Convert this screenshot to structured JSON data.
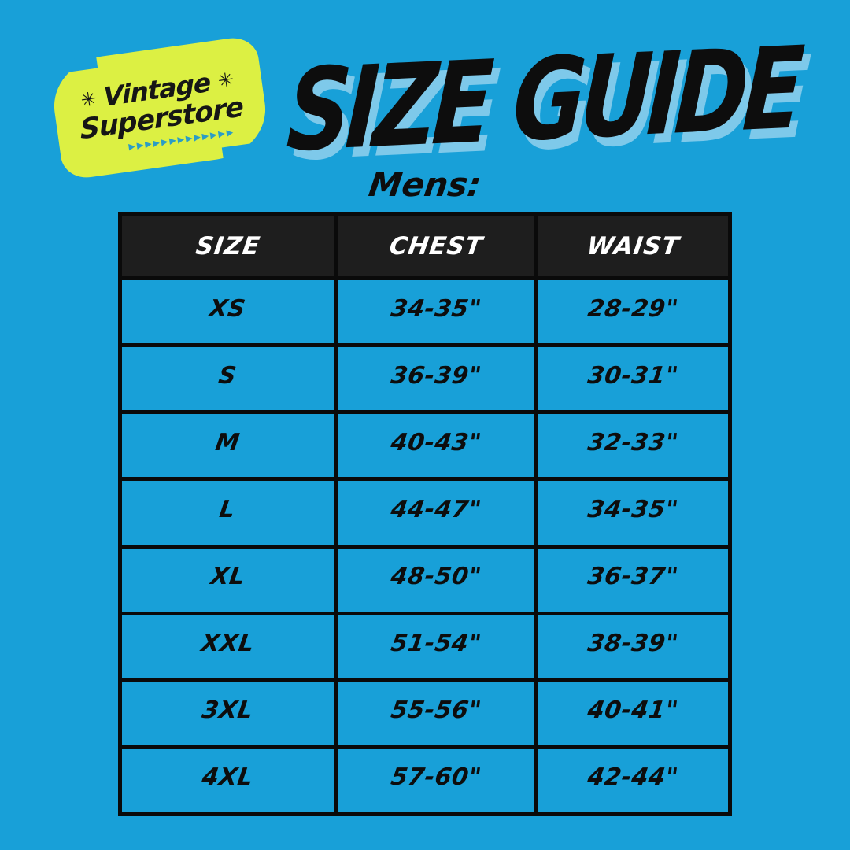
{
  "colors": {
    "background": "#18a0d8",
    "title_shadow": "#7ec9ea",
    "badge": "#dcf043",
    "header_bg": "#1e1e1e",
    "border": "#0a0a0a",
    "arrow": "#2b9dc5"
  },
  "logo": {
    "line1": "Vintage",
    "line2": "Superstore",
    "sparkle": "✳",
    "arrows": "▶▶▶▶▶▶▶▶▶▶▶▶▶"
  },
  "title": "SIZE GUIDE",
  "section_label": "Mens:",
  "table": {
    "headers": [
      "SIZE",
      "CHEST",
      "WAIST"
    ],
    "rows": [
      {
        "size": "XS",
        "chest": "34-35\"",
        "waist": "28-29\""
      },
      {
        "size": "S",
        "chest": "36-39\"",
        "waist": "30-31\""
      },
      {
        "size": "M",
        "chest": "40-43\"",
        "waist": "32-33\""
      },
      {
        "size": "L",
        "chest": "44-47\"",
        "waist": "34-35\""
      },
      {
        "size": "XL",
        "chest": "48-50\"",
        "waist": "36-37\""
      },
      {
        "size": "XXL",
        "chest": "51-54\"",
        "waist": "38-39\""
      },
      {
        "size": "3XL",
        "chest": "55-56\"",
        "waist": "40-41\""
      },
      {
        "size": "4XL",
        "chest": "57-60\"",
        "waist": "42-44\""
      }
    ]
  }
}
